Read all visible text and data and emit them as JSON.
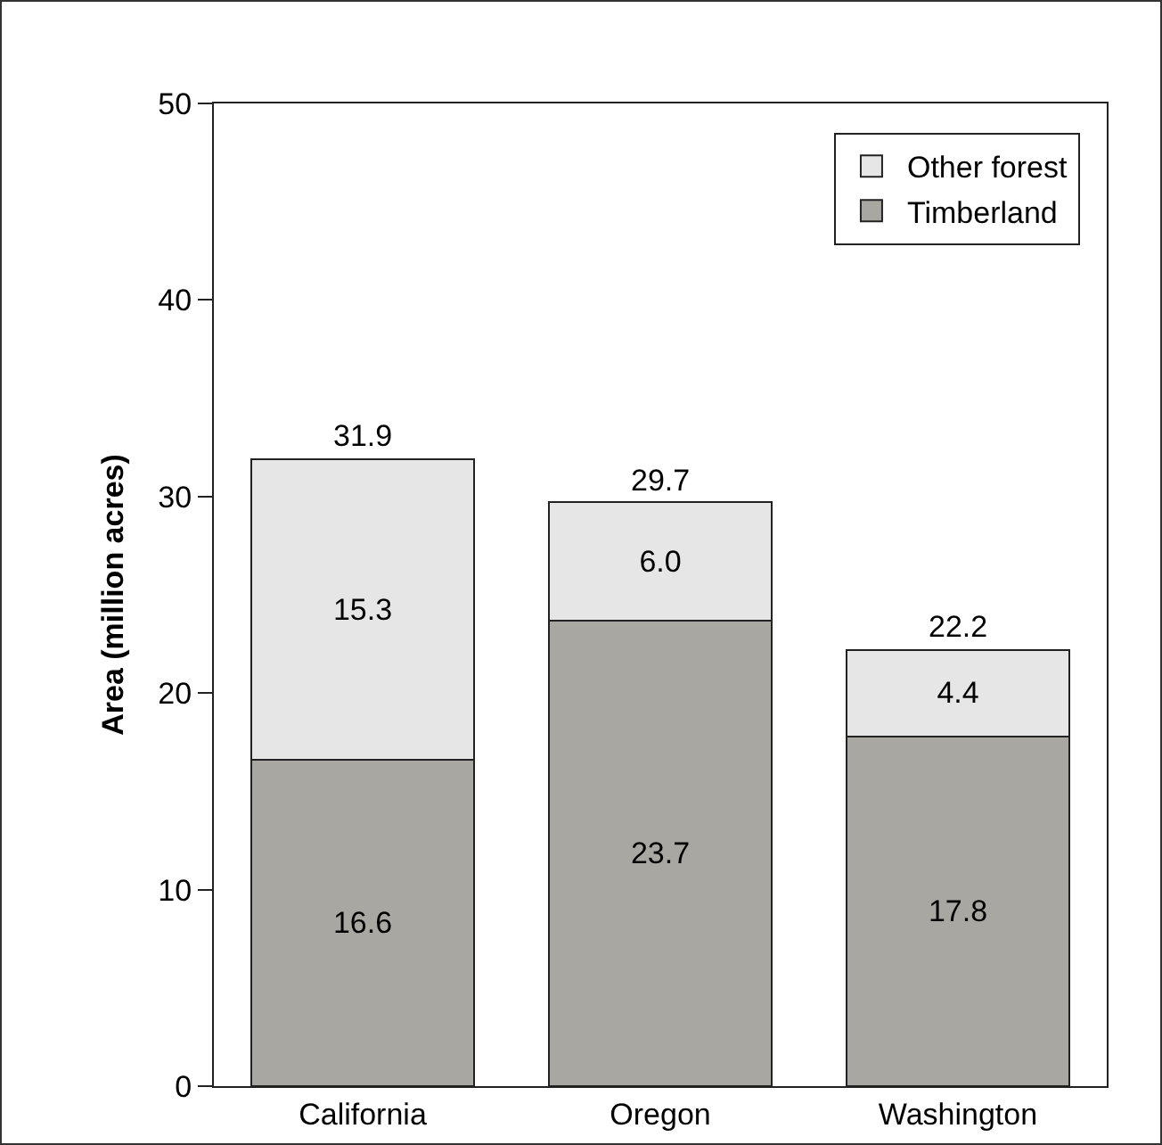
{
  "chart_data": {
    "type": "bar",
    "stacked": true,
    "ylabel": "Area (million acres)",
    "categories": [
      "California",
      "Oregon",
      "Washington"
    ],
    "series": [
      {
        "name": "Timberland",
        "color": "#a9a7a1",
        "values": [
          16.6,
          23.7,
          17.8
        ],
        "value_labels": [
          "16.6",
          "23.7",
          "17.8"
        ]
      },
      {
        "name": "Other forest",
        "color": "#e6e6e6",
        "values": [
          15.3,
          6.0,
          4.4
        ],
        "value_labels": [
          "15.3",
          "6.0",
          "4.4"
        ]
      }
    ],
    "totals": [
      "31.9",
      "29.7",
      "22.2"
    ],
    "ylim": [
      0,
      50
    ],
    "yticks": [
      0,
      10,
      20,
      30,
      40,
      50
    ],
    "grid": false,
    "legend": "top right"
  }
}
